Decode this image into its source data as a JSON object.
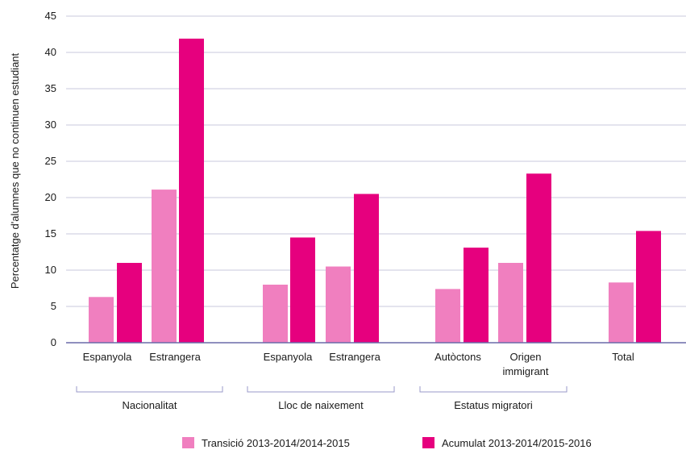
{
  "chart_data": {
    "type": "bar",
    "ylabel": "Percentatge d'alumnes que no continuen estudiant",
    "ylim": [
      0,
      45
    ],
    "yticks": [
      0,
      5,
      10,
      15,
      20,
      25,
      30,
      35,
      40,
      45
    ],
    "grid": true,
    "legend_position": "bottom",
    "categories": [
      {
        "label": "Espanyola",
        "lines": [
          "Espanyola"
        ]
      },
      {
        "label": "Estrangera",
        "lines": [
          "Estrangera"
        ]
      },
      {
        "label": "Espanyola",
        "lines": [
          "Espanyola"
        ]
      },
      {
        "label": "Estrangera",
        "lines": [
          "Estrangera"
        ]
      },
      {
        "label": "Autòctons",
        "lines": [
          "Autòctons"
        ]
      },
      {
        "label": "Origen immigrant",
        "lines": [
          "Origen",
          "immigrant"
        ]
      },
      {
        "label": "Total",
        "lines": [
          "Total"
        ]
      }
    ],
    "groups": [
      {
        "label": "Nacionalitat",
        "categories": [
          0,
          1
        ]
      },
      {
        "label": "Lloc de naixement",
        "categories": [
          2,
          3
        ]
      },
      {
        "label": "Estatus migratori",
        "categories": [
          4,
          5
        ]
      }
    ],
    "series": [
      {
        "name": "Transició 2013-2014/2014-2015",
        "color": "#f07fbf",
        "values": [
          6.3,
          21.1,
          8.0,
          10.5,
          7.4,
          11.0,
          8.3
        ]
      },
      {
        "name": "Acumulat 2013-2014/2015-2016",
        "color": "#e6007e",
        "values": [
          11.0,
          41.9,
          14.5,
          20.5,
          13.1,
          23.3,
          15.4
        ]
      }
    ]
  },
  "colors": {
    "grid": "#c8c8dc",
    "axis": "#6a6aa8",
    "bracket": "#9a9ac8"
  }
}
